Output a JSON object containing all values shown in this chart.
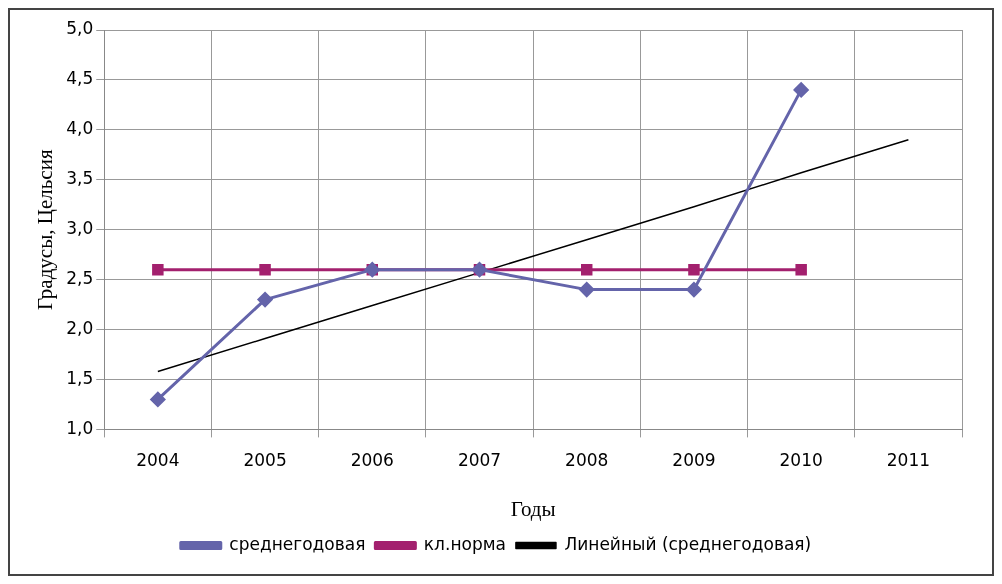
{
  "chart_data": {
    "type": "line",
    "xlabel": "Годы",
    "ylabel": "Градусы, Цельсия",
    "categories": [
      "2004",
      "2005",
      "2006",
      "2007",
      "2008",
      "2009",
      "2010",
      "2011"
    ],
    "series": [
      {
        "name": "среднегодовая",
        "color": "#6464aa",
        "marker": "diamond",
        "values": [
          1.3,
          2.3,
          2.6,
          2.6,
          2.4,
          2.4,
          4.4,
          null
        ]
      },
      {
        "name": "кл.норма",
        "color": "#a3206e",
        "marker": "square",
        "values": [
          2.6,
          2.6,
          2.6,
          2.6,
          2.6,
          2.6,
          2.6,
          null
        ]
      },
      {
        "name": "Линейный (среднегодовая)",
        "color": "#000000",
        "marker": "none",
        "values": [
          1.58,
          1.91,
          2.24,
          2.57,
          2.9,
          3.23,
          3.57,
          3.9
        ]
      }
    ],
    "ylim": [
      1,
      5
    ],
    "yticks": [
      {
        "value": 1,
        "label": "1,0"
      },
      {
        "value": 1.5,
        "label": "1,5"
      },
      {
        "value": 2,
        "label": "2,0"
      },
      {
        "value": 2.5,
        "label": "2,5"
      },
      {
        "value": 3,
        "label": "3,0"
      },
      {
        "value": 3.5,
        "label": "3,5"
      },
      {
        "value": 4,
        "label": "4,0"
      },
      {
        "value": 4.5,
        "label": "4,5"
      },
      {
        "value": 5,
        "label": "5,0"
      }
    ],
    "grid": true,
    "legend": "bottom"
  }
}
